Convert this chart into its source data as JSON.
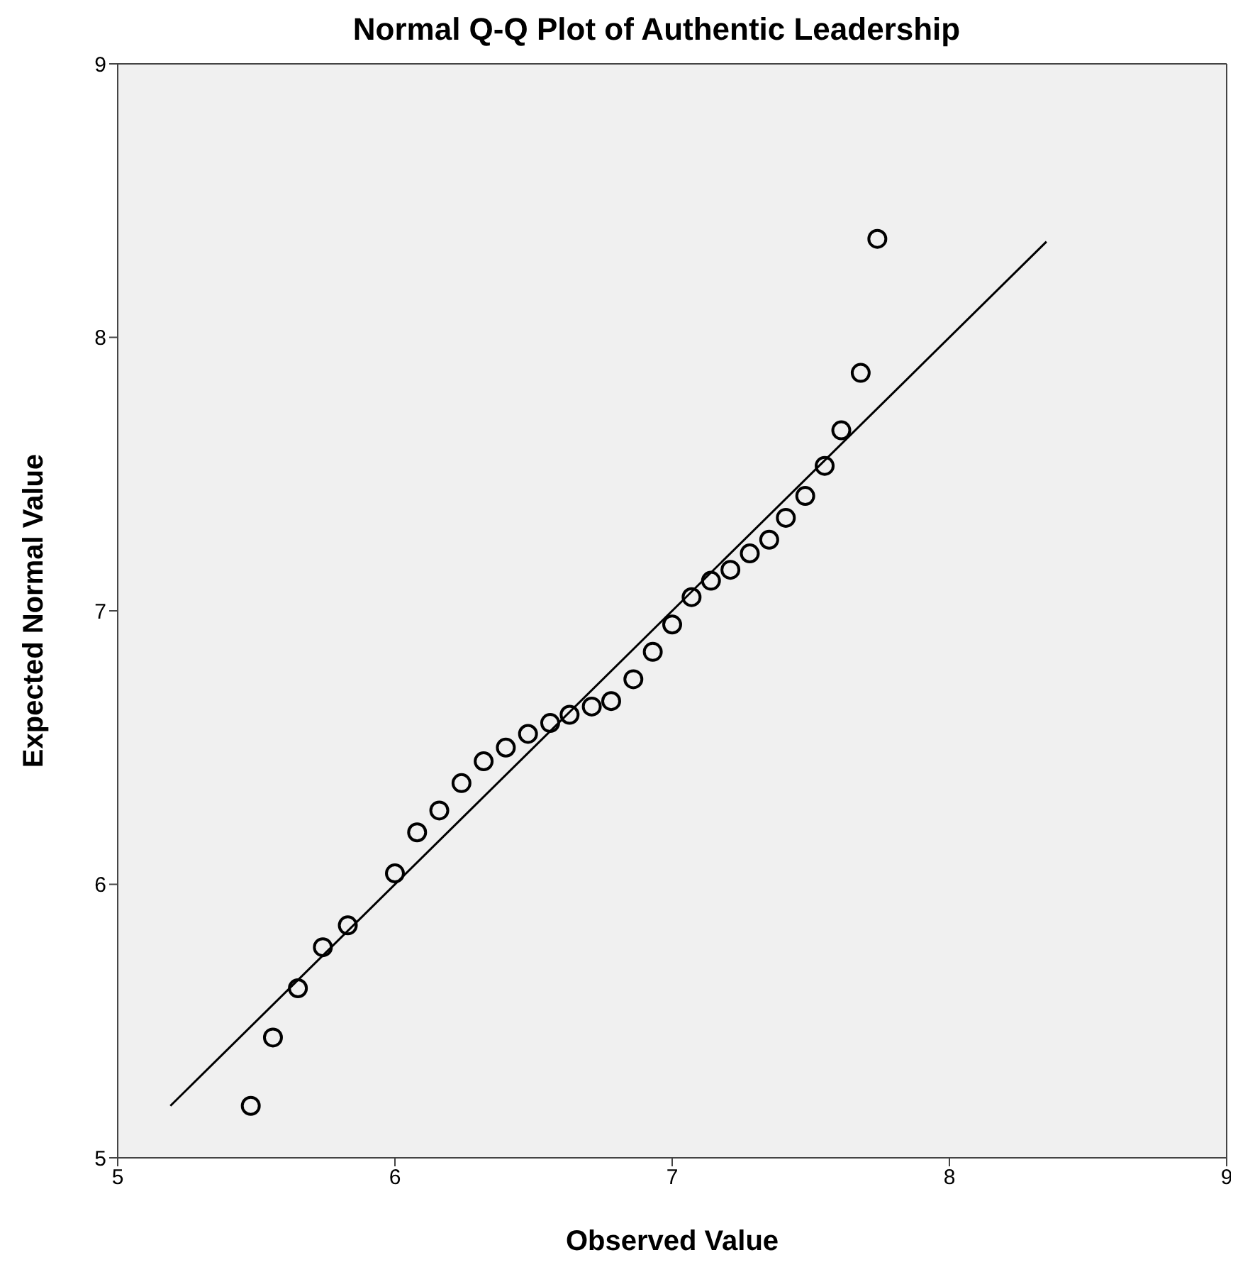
{
  "chart_data": {
    "type": "scatter",
    "title": "Normal Q-Q Plot of Authentic Leadership",
    "xlabel": "Observed Value",
    "ylabel": "Expected Normal Value",
    "xlim": [
      5,
      9
    ],
    "ylim": [
      5,
      9
    ],
    "xticks": [
      5,
      6,
      7,
      8,
      9
    ],
    "yticks": [
      5,
      6,
      7,
      8,
      9
    ],
    "grid": false,
    "marker": "circle",
    "series": [
      {
        "color": "#000000",
        "x": [
          5.48,
          5.56,
          5.65,
          5.74,
          5.83,
          6.0,
          6.08,
          6.16,
          6.24,
          6.32,
          6.4,
          6.48,
          6.56,
          6.63,
          6.71,
          6.78,
          6.86,
          6.93,
          7.0,
          7.07,
          7.14,
          7.21,
          7.28,
          7.35,
          7.41,
          7.48,
          7.55,
          7.61,
          7.68,
          7.74
        ],
        "values": [
          5.19,
          5.44,
          5.62,
          5.77,
          5.85,
          6.04,
          6.19,
          6.27,
          6.37,
          6.45,
          6.5,
          6.55,
          6.59,
          6.62,
          6.65,
          6.67,
          6.75,
          6.85,
          6.95,
          7.05,
          7.11,
          7.15,
          7.21,
          7.26,
          7.34,
          7.42,
          7.53,
          7.66,
          7.87,
          8.36
        ]
      },
      {
        "type": "line",
        "marker": "none",
        "color": "#000000",
        "x": [
          5.19,
          8.35
        ],
        "values": [
          5.19,
          8.35
        ]
      }
    ]
  }
}
